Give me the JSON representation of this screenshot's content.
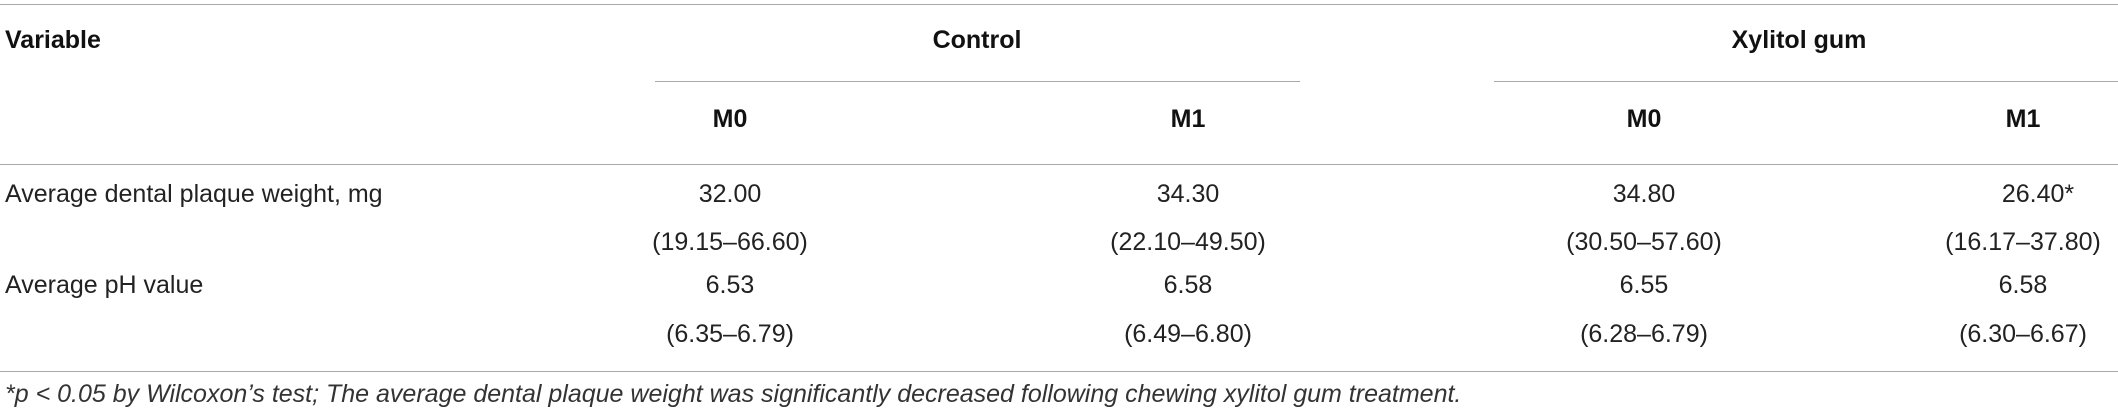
{
  "table": {
    "header": {
      "variable_label": "Variable",
      "group_control": "Control",
      "group_xylitol": "Xylitol gum",
      "sub_labels": [
        "M0",
        "M1",
        "M0",
        "M1"
      ]
    },
    "rows": [
      {
        "label": "Average dental plaque weight, mg",
        "values": [
          "32.00",
          "34.30",
          "34.80",
          "26.40*"
        ],
        "ranges": [
          "(19.15–66.60)",
          "(22.10–49.50)",
          "(30.50–57.60)",
          "(16.17–37.80)"
        ]
      },
      {
        "label": "Average pH value",
        "values": [
          "6.53",
          "6.58",
          "6.55",
          "6.58"
        ],
        "ranges": [
          "(6.35–6.79)",
          "(6.49–6.80)",
          "(6.28–6.79)",
          "(6.30–6.67)"
        ]
      }
    ],
    "footnote": "*p < 0.05 by Wilcoxon’s test; The average dental plaque weight was significantly decreased following chewing xylitol gum treatment."
  }
}
